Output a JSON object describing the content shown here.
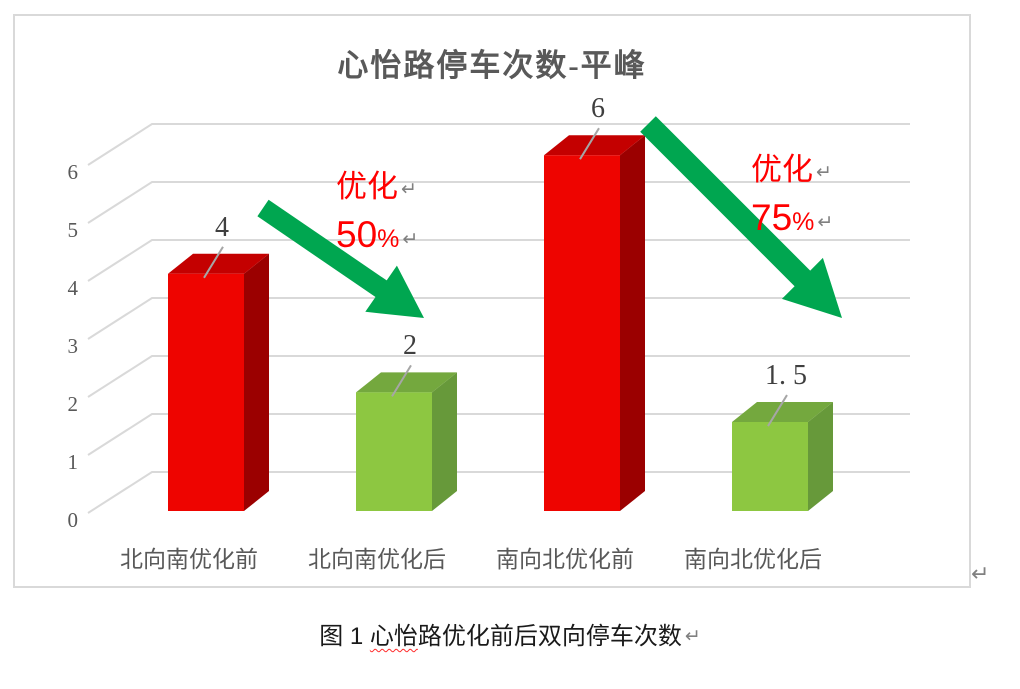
{
  "chart_data": {
    "type": "bar",
    "variant": "3d-column",
    "title": "心怡路停车次数-平峰",
    "categories": [
      "北向南优化前",
      "北向南优化后",
      "南向北优化前",
      "南向北优化后"
    ],
    "values": [
      4,
      2,
      6,
      1.5
    ],
    "value_labels": [
      "4",
      "2",
      "6",
      "1. 5"
    ],
    "colors": [
      "#EE0400",
      "#8DC741",
      "#EE0400",
      "#8DC741"
    ],
    "colors_top": [
      "#C40000",
      "#74A83E",
      "#C40000",
      "#74A83E"
    ],
    "colors_side": [
      "#9B0000",
      "#67993A",
      "#9B0000",
      "#67993A"
    ],
    "xlabel": "",
    "ylabel": "",
    "ylim": [
      0,
      6
    ],
    "yticks": [
      0,
      1,
      2,
      3,
      4,
      5,
      6
    ],
    "grid": true,
    "legend": "none"
  },
  "annotations": [
    {
      "label": "优化",
      "value": "50",
      "unit": "%",
      "line_break_mark": "↵"
    },
    {
      "label": "优化",
      "value": "75",
      "unit": "%",
      "line_break_mark": "↵"
    }
  ],
  "caption": {
    "parts": [
      {
        "text": "图 1 ",
        "spellcheck": false
      },
      {
        "text": "心怡",
        "spellcheck": true
      },
      {
        "text": "路优化前后双向停车次数",
        "spellcheck": false
      }
    ],
    "line_break_mark": "↵"
  },
  "marks": {
    "after_chart_line_break": "↵"
  },
  "colors": {
    "arrow_green": "#00A650",
    "annotation_red": "#FF0000",
    "grid": "#D9D9D9",
    "axis_text": "#595959",
    "data_label_text": "#3F3F3F",
    "caption_text": "#1A1A1A",
    "mark_gray": "#808080",
    "leader": "#A6A6A6",
    "chart_border": "#D9D9D9",
    "spell_underline": "#FF2A2A"
  }
}
